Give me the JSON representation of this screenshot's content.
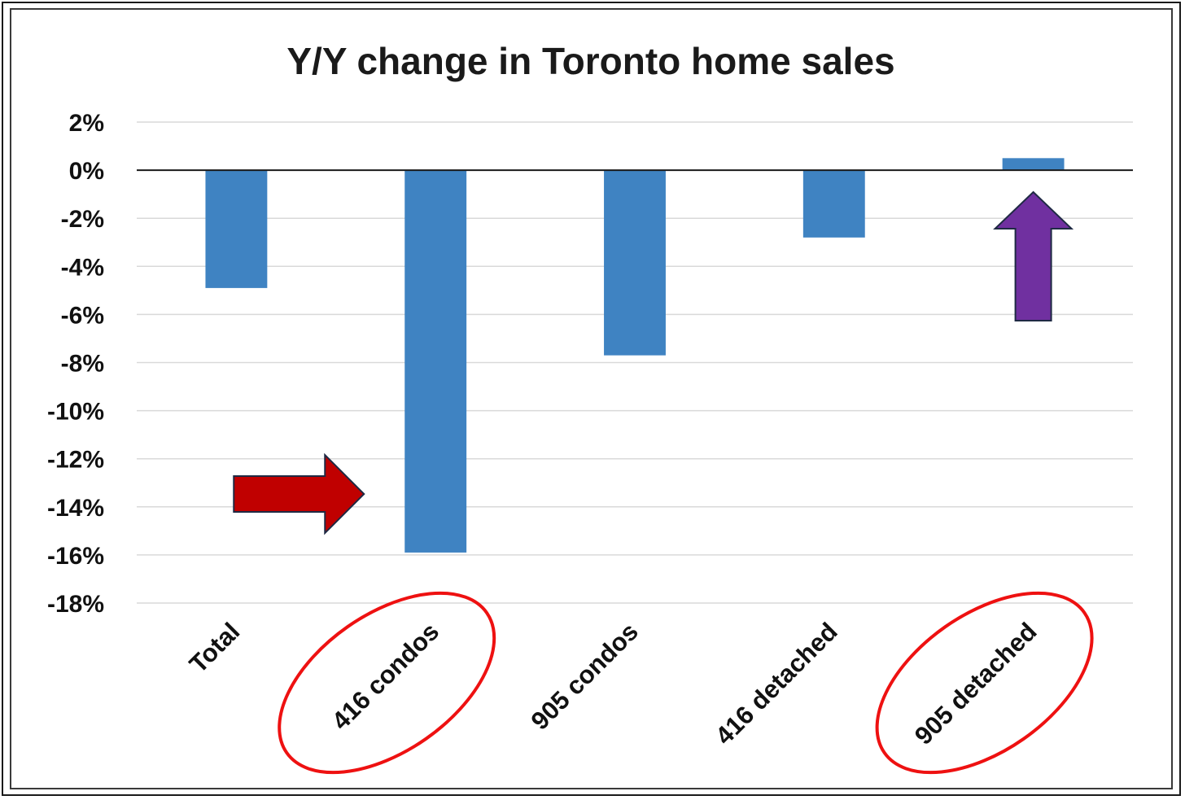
{
  "chart_data": {
    "type": "bar",
    "title": "Y/Y change in Toronto home sales",
    "xlabel": "",
    "ylabel": "",
    "categories": [
      "Total",
      "416 condos",
      "905 condos",
      "416 detached",
      "905 detached"
    ],
    "values": [
      -4.9,
      -15.9,
      -7.7,
      -2.8,
      0.5
    ],
    "ylim": [
      -18,
      2
    ],
    "yticks": [
      2,
      0,
      -2,
      -4,
      -6,
      -8,
      -10,
      -12,
      -14,
      -16,
      -18
    ],
    "ytick_labels": [
      "2%",
      "0%",
      "-2%",
      "-4%",
      "-6%",
      "-8%",
      "-10%",
      "-12%",
      "-14%",
      "-16%",
      "-18%"
    ],
    "grid": true,
    "legend": "none",
    "colors": {
      "bar": "#3f83c2",
      "grid": "#d9d9d9",
      "zero_line": "#1a1a1a",
      "red_arrow": "#c00000",
      "purple_arrow": "#7030a0",
      "circle": "#ee1111"
    },
    "annotations": [
      {
        "type": "arrow",
        "direction": "right",
        "target": "416 condos",
        "color": "#c00000"
      },
      {
        "type": "arrow",
        "direction": "up",
        "target": "905 detached",
        "color": "#7030a0"
      },
      {
        "type": "ellipse",
        "target": "416 condos",
        "color": "#ee1111"
      },
      {
        "type": "ellipse",
        "target": "905 detached",
        "color": "#ee1111"
      }
    ]
  }
}
